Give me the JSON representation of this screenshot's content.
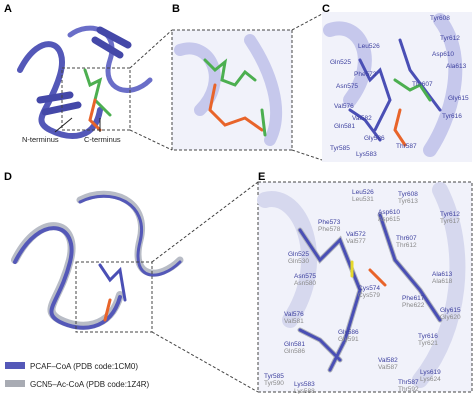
{
  "panels": {
    "A": {
      "label": "A",
      "annotations": [
        "N-terminus",
        "C-terminus"
      ]
    },
    "B": {
      "label": "B"
    },
    "C": {
      "label": "C",
      "residues": [
        "Leu526",
        "Tyr608",
        "Tyr612",
        "Gln525",
        "Phe573",
        "Asp610",
        "Ala613",
        "Asn575",
        "Thr607",
        "Val576",
        "Val582",
        "Gly615",
        "Gln581",
        "Tyr616",
        "Gly586",
        "Tyr585",
        "Lys583",
        "Thr587"
      ]
    },
    "D": {
      "label": "D"
    },
    "E": {
      "label": "E",
      "residues": [
        {
          "pcaf": "Tyr608",
          "gcn5": "Tyr613"
        },
        {
          "pcaf": "Leu526",
          "gcn5": "Leu531"
        },
        {
          "pcaf": "Asp610",
          "gcn5": "Asp615"
        },
        {
          "pcaf": "Tyr612",
          "gcn5": "Tyr617"
        },
        {
          "pcaf": "Phe573",
          "gcn5": "Phe578"
        },
        {
          "pcaf": "Val572",
          "gcn5": "Val577"
        },
        {
          "pcaf": "Thr607",
          "gcn5": "Thr612"
        },
        {
          "pcaf": "Gln525",
          "gcn5": "Gln530"
        },
        {
          "pcaf": "Asn575",
          "gcn5": "Asn580"
        },
        {
          "pcaf": "Ala613",
          "gcn5": "Ala618"
        },
        {
          "pcaf": "Cys574",
          "gcn5": "Cys579"
        },
        {
          "pcaf": "Phe617",
          "gcn5": "Phe622"
        },
        {
          "pcaf": "Gly615",
          "gcn5": "Gly620"
        },
        {
          "pcaf": "Val576",
          "gcn5": "Val581"
        },
        {
          "pcaf": "Gly586",
          "gcn5": "Gly591"
        },
        {
          "pcaf": "Tyr616",
          "gcn5": "Tyr621"
        },
        {
          "pcaf": "Gln581",
          "gcn5": "Gln586"
        },
        {
          "pcaf": "Val582",
          "gcn5": "Val587"
        },
        {
          "pcaf": "Lys619",
          "gcn5": "Lys624"
        },
        {
          "pcaf": "Thr587",
          "gcn5": "Thr592"
        },
        {
          "pcaf": "Tyr585",
          "gcn5": "Tyr590"
        },
        {
          "pcaf": "Lys583",
          "gcn5": "Lys588"
        }
      ]
    }
  },
  "legend": [
    "PCAF–CoA (PDB code:1CM0)",
    "GCN5–Ac-CoA (PDB code:1Z4R)"
  ]
}
